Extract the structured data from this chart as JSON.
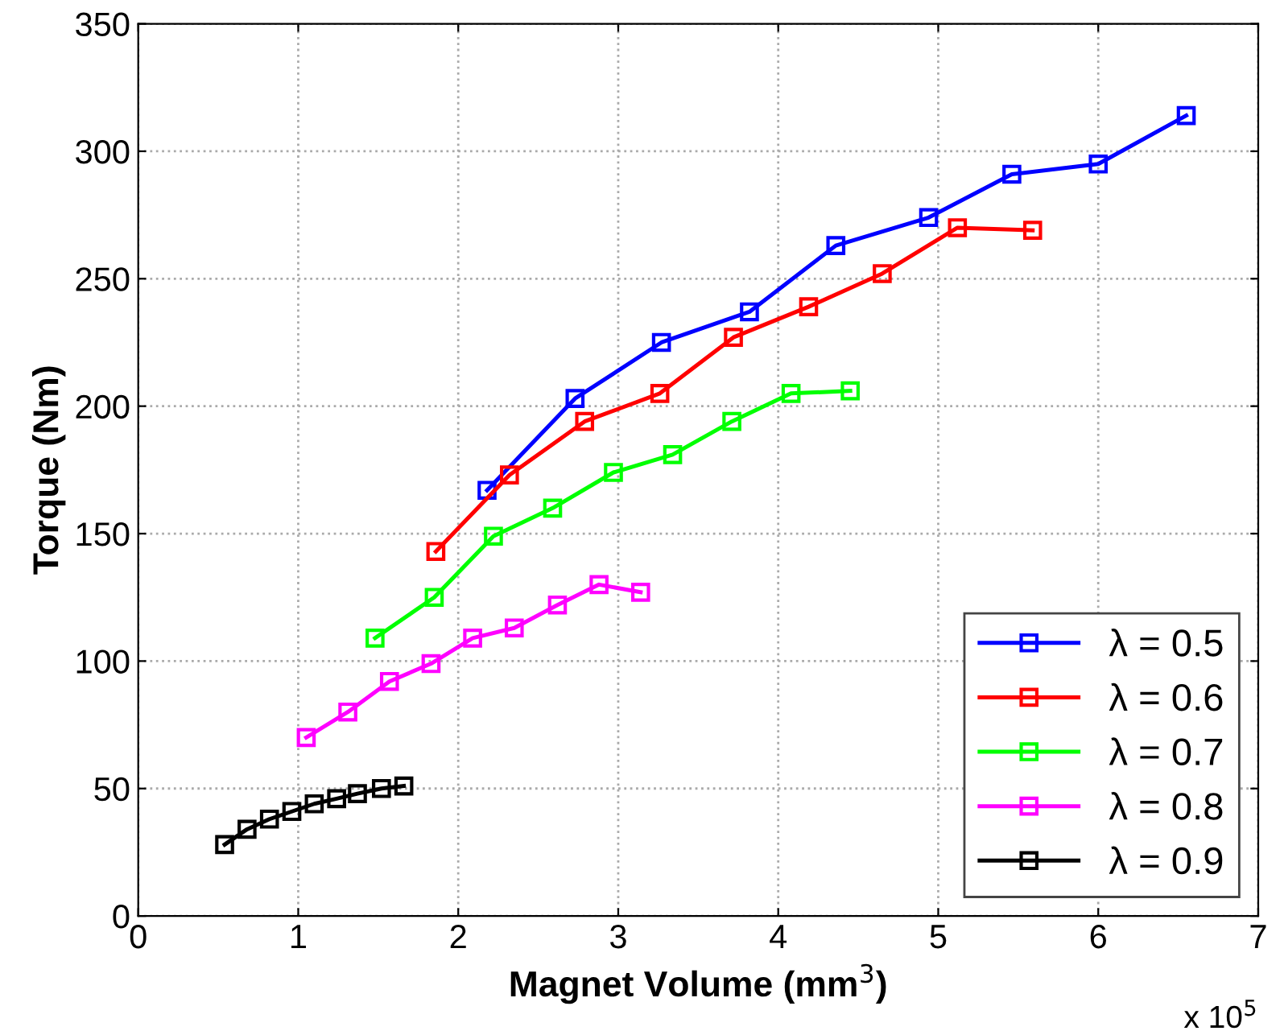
{
  "chart_data": {
    "type": "line",
    "xlabel": "Magnet Volume (mm$^{3}$)",
    "ylabel": "Torque (Nm)",
    "xlim": [
      0,
      7
    ],
    "xticks": [
      0,
      1,
      2,
      3,
      4,
      5,
      6,
      7
    ],
    "ylim": [
      0,
      350
    ],
    "yticks": [
      0,
      50,
      100,
      150,
      200,
      250,
      300,
      350
    ],
    "grid": true,
    "legend": "bottom right",
    "marker": "square",
    "line_style": "solid",
    "annotations": [
      "x 10$^{5}$"
    ],
    "series": [
      {
        "name": "λ = 0.5",
        "color": "#0000ff",
        "x": [
          2.18,
          2.73,
          3.27,
          3.82,
          4.36,
          4.94,
          5.46,
          6.0,
          6.55
        ],
        "values": [
          167,
          203,
          225,
          237,
          263,
          274,
          291,
          295,
          314
        ]
      },
      {
        "name": "λ = 0.6",
        "color": "#ff0000",
        "x": [
          1.86,
          2.32,
          2.79,
          3.26,
          3.72,
          4.19,
          4.65,
          5.12,
          5.59
        ],
        "values": [
          143,
          173,
          194,
          205,
          227,
          239,
          252,
          270,
          269
        ]
      },
      {
        "name": "λ = 0.7",
        "color": "#00ff00",
        "x": [
          1.48,
          1.85,
          2.22,
          2.59,
          2.97,
          3.34,
          3.71,
          4.08,
          4.45
        ],
        "values": [
          109,
          125,
          149,
          160,
          174,
          181,
          194,
          205,
          206
        ]
      },
      {
        "name": "λ = 0.8",
        "color": "#ff00ff",
        "x": [
          1.05,
          1.31,
          1.57,
          1.83,
          2.09,
          2.35,
          2.62,
          2.88,
          3.14
        ],
        "values": [
          70,
          80,
          92,
          99,
          109,
          113,
          122,
          130,
          127
        ]
      },
      {
        "name": "λ = 0.9",
        "color": "#000000",
        "x": [
          0.54,
          0.68,
          0.82,
          0.96,
          1.1,
          1.24,
          1.37,
          1.52,
          1.66
        ],
        "values": [
          28,
          34,
          38,
          41,
          44,
          46,
          48,
          50,
          51
        ]
      }
    ]
  }
}
